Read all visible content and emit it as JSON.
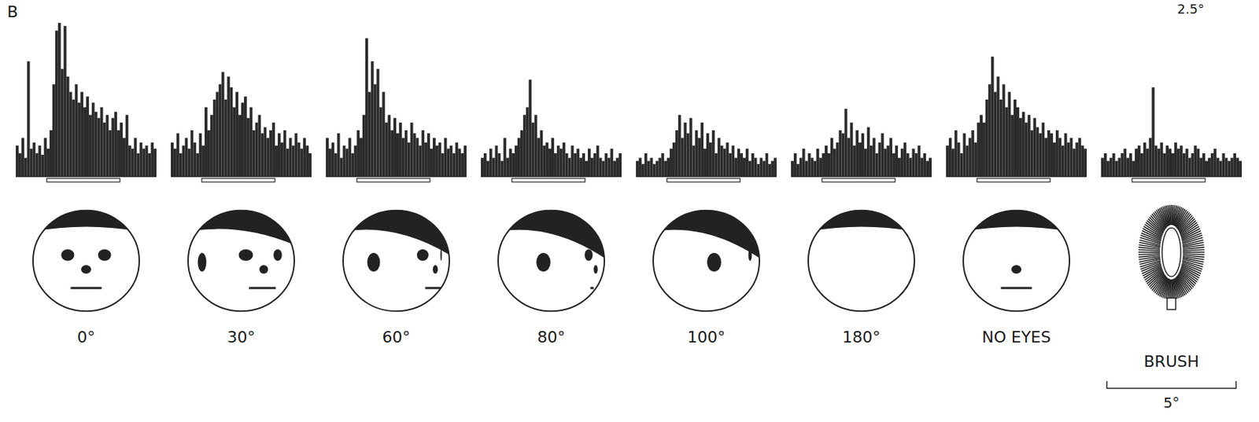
{
  "panel_label": "B",
  "annotations": [
    "2.5°",
    "5°"
  ],
  "chart_data": [
    {
      "type": "bar",
      "title": "0°",
      "color": "#2b2b2b",
      "ylim": [
        0,
        100
      ],
      "tick_labels": false,
      "stimulus": [
        11,
        37
      ],
      "values": [
        20,
        15,
        25,
        12,
        75,
        18,
        22,
        15,
        20,
        14,
        25,
        18,
        30,
        60,
        95,
        100,
        70,
        98,
        65,
        55,
        50,
        60,
        48,
        55,
        45,
        52,
        40,
        48,
        42,
        38,
        45,
        35,
        40,
        30,
        38,
        42,
        30,
        35,
        25,
        40,
        20,
        18,
        25,
        15,
        22,
        18,
        20,
        15,
        22,
        18
      ]
    },
    {
      "type": "bar",
      "title": "30°",
      "color": "#2b2b2b",
      "ylim": [
        0,
        100
      ],
      "tick_labels": false,
      "stimulus": [
        11,
        37
      ],
      "values": [
        22,
        18,
        28,
        15,
        20,
        25,
        18,
        30,
        22,
        15,
        28,
        20,
        45,
        30,
        40,
        50,
        55,
        60,
        68,
        50,
        65,
        58,
        45,
        55,
        40,
        48,
        52,
        38,
        45,
        30,
        35,
        40,
        28,
        32,
        25,
        30,
        35,
        20,
        28,
        22,
        30,
        18,
        25,
        20,
        28,
        22,
        18,
        25,
        20,
        15
      ]
    },
    {
      "type": "bar",
      "title": "60°",
      "color": "#2b2b2b",
      "ylim": [
        0,
        100
      ],
      "tick_labels": false,
      "stimulus": [
        11,
        37
      ],
      "values": [
        25,
        18,
        22,
        15,
        28,
        12,
        20,
        18,
        25,
        15,
        20,
        30,
        25,
        40,
        90,
        55,
        75,
        60,
        70,
        45,
        55,
        35,
        40,
        30,
        38,
        28,
        35,
        25,
        30,
        22,
        35,
        28,
        25,
        20,
        30,
        22,
        28,
        18,
        25,
        20,
        22,
        15,
        25,
        18,
        20,
        15,
        22,
        18,
        15,
        20
      ]
    },
    {
      "type": "bar",
      "title": "80°",
      "color": "#2b2b2b",
      "ylim": [
        0,
        100
      ],
      "tick_labels": false,
      "stimulus": [
        11,
        37
      ],
      "values": [
        12,
        15,
        10,
        18,
        12,
        20,
        15,
        10,
        25,
        12,
        18,
        15,
        20,
        25,
        30,
        40,
        45,
        63,
        35,
        40,
        25,
        30,
        20,
        22,
        18,
        25,
        15,
        20,
        18,
        22,
        15,
        12,
        20,
        15,
        18,
        12,
        15,
        10,
        18,
        12,
        15,
        20,
        12,
        10,
        15,
        12,
        18,
        10,
        12,
        15
      ]
    },
    {
      "type": "bar",
      "title": "100°",
      "color": "#2b2b2b",
      "ylim": [
        0,
        100
      ],
      "tick_labels": false,
      "stimulus": [
        11,
        37
      ],
      "values": [
        10,
        12,
        8,
        15,
        10,
        12,
        8,
        10,
        12,
        15,
        10,
        12,
        18,
        22,
        30,
        40,
        25,
        35,
        28,
        38,
        20,
        30,
        25,
        35,
        18,
        28,
        22,
        30,
        15,
        25,
        20,
        18,
        22,
        15,
        20,
        12,
        18,
        15,
        12,
        18,
        10,
        15,
        12,
        8,
        12,
        10,
        15,
        8,
        10,
        12
      ]
    },
    {
      "type": "bar",
      "title": "180°",
      "color": "#2b2b2b",
      "ylim": [
        0,
        100
      ],
      "tick_labels": false,
      "stimulus": [
        11,
        37
      ],
      "values": [
        10,
        15,
        8,
        12,
        18,
        10,
        15,
        12,
        10,
        18,
        12,
        15,
        20,
        15,
        25,
        18,
        22,
        30,
        28,
        44,
        25,
        35,
        20,
        30,
        22,
        28,
        18,
        32,
        20,
        25,
        15,
        22,
        28,
        18,
        20,
        25,
        15,
        20,
        12,
        18,
        22,
        15,
        12,
        18,
        15,
        20,
        12,
        15,
        10,
        12
      ]
    },
    {
      "type": "bar",
      "title": "NO EYES",
      "color": "#2b2b2b",
      "ylim": [
        0,
        100
      ],
      "tick_labels": false,
      "stimulus": [
        11,
        37
      ],
      "values": [
        20,
        25,
        18,
        30,
        22,
        15,
        28,
        20,
        25,
        30,
        22,
        35,
        40,
        35,
        50,
        60,
        78,
        55,
        65,
        50,
        60,
        45,
        55,
        40,
        50,
        45,
        38,
        42,
        35,
        40,
        30,
        38,
        32,
        28,
        35,
        25,
        30,
        28,
        22,
        30,
        25,
        20,
        28,
        22,
        25,
        18,
        22,
        25,
        20,
        18
      ]
    },
    {
      "type": "bar",
      "title": "BRUSH",
      "color": "#2b2b2b",
      "ylim": [
        0,
        100
      ],
      "tick_labels": false,
      "stimulus": [
        11,
        37
      ],
      "values": [
        12,
        15,
        10,
        12,
        15,
        10,
        12,
        15,
        18,
        12,
        15,
        10,
        18,
        20,
        15,
        22,
        18,
        25,
        58,
        20,
        18,
        22,
        15,
        20,
        18,
        15,
        22,
        18,
        20,
        15,
        18,
        12,
        15,
        20,
        18,
        12,
        15,
        10,
        12,
        15,
        18,
        12,
        10,
        15,
        12,
        10,
        12,
        15,
        12,
        10
      ]
    }
  ]
}
